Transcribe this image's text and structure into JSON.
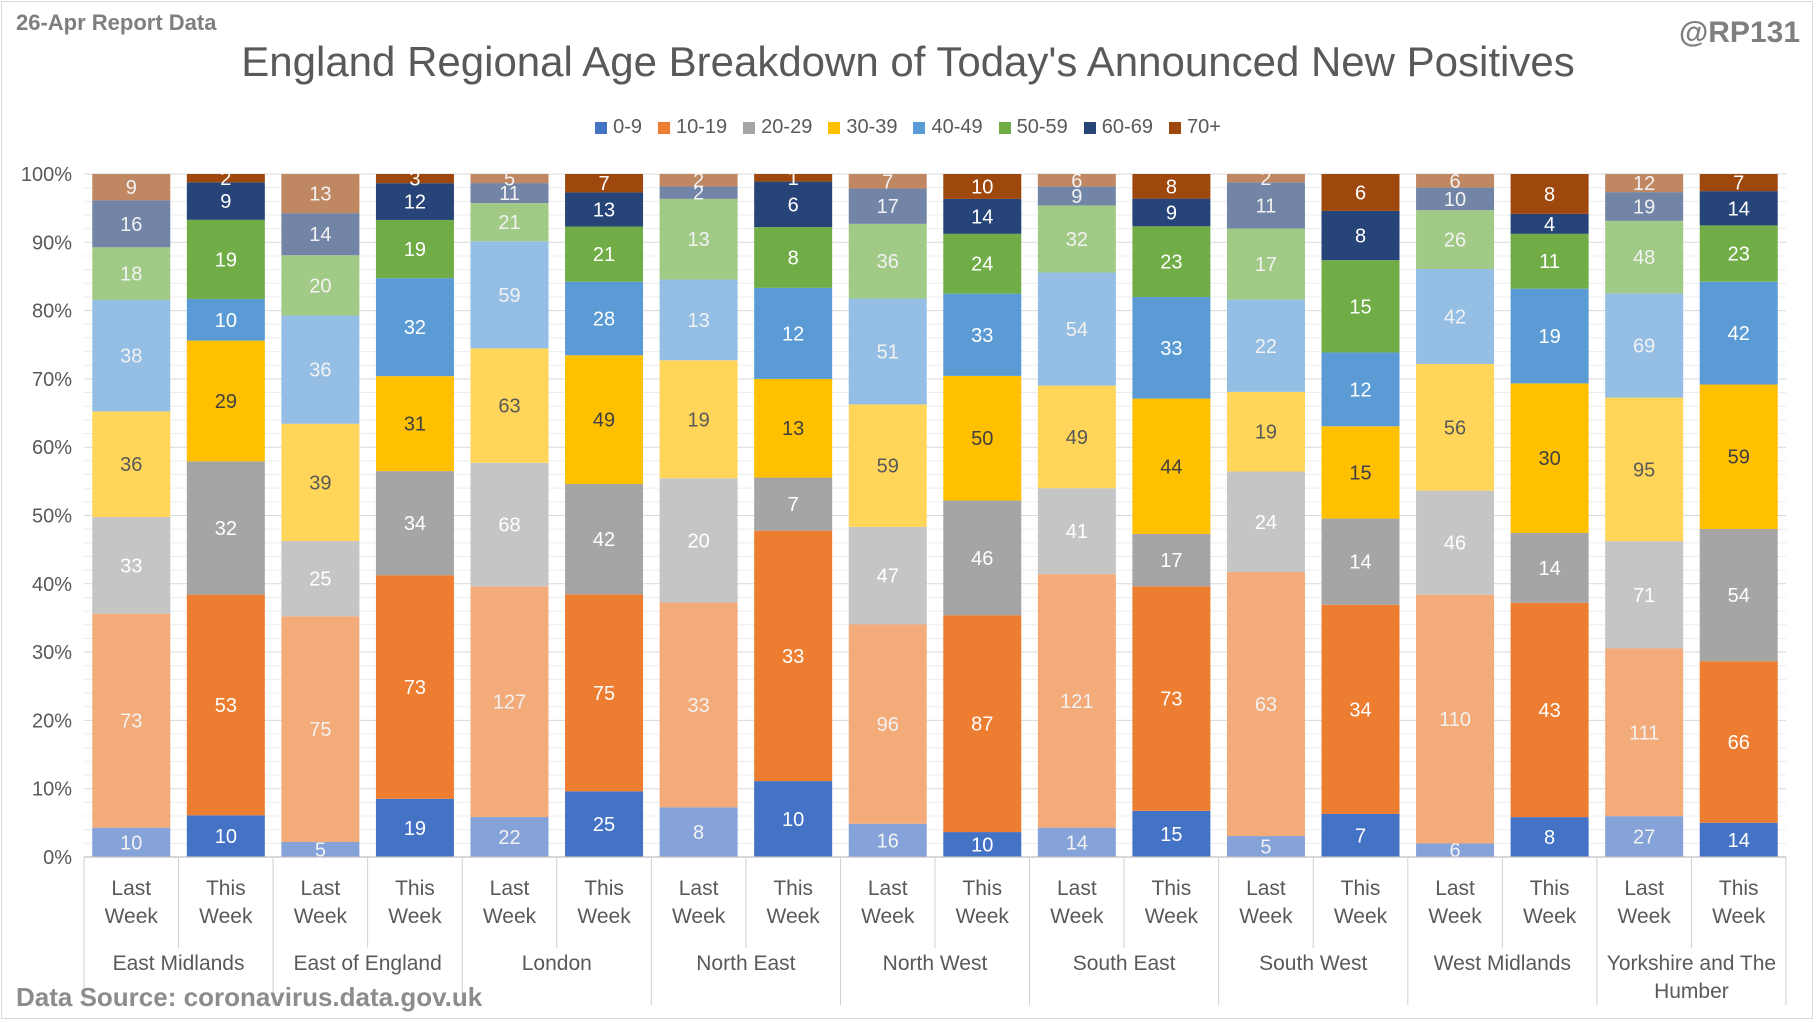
{
  "report_label": "26-Apr Report Data",
  "handle": "@RP131",
  "source": "Data Source: coronavirus.data.gov.uk",
  "chart_data": {
    "type": "bar",
    "stacked": "percent",
    "title": "England Regional Age Breakdown of Today's Announced New Positives",
    "xlabel": "",
    "ylabel": "",
    "ylim": [
      0,
      1
    ],
    "yticks": [
      "0%",
      "10%",
      "20%",
      "30%",
      "40%",
      "50%",
      "60%",
      "70%",
      "80%",
      "90%",
      "100%"
    ],
    "grid": true,
    "legend_position": "top",
    "series_names": [
      "0-9",
      "10-19",
      "20-29",
      "30-39",
      "40-49",
      "50-59",
      "60-69",
      "70+"
    ],
    "series_colors": [
      "#4472c4",
      "#ed7d31",
      "#a5a5a5",
      "#ffc000",
      "#5b9bd5",
      "#70ad47",
      "#264478",
      "#9e480e"
    ],
    "groups": [
      {
        "region": "East Midlands",
        "bars": [
          {
            "label": [
              "Last",
              "Week"
            ],
            "values": [
              10,
              73,
              33,
              36,
              38,
              18,
              16,
              9
            ]
          },
          {
            "label": [
              "This",
              "Week"
            ],
            "values": [
              10,
              53,
              32,
              29,
              10,
              19,
              9,
              2
            ]
          }
        ]
      },
      {
        "region": "East of England",
        "bars": [
          {
            "label": [
              "Last",
              "Week"
            ],
            "values": [
              5,
              75,
              25,
              39,
              36,
              20,
              14,
              13
            ]
          },
          {
            "label": [
              "This",
              "Week"
            ],
            "values": [
              19,
              73,
              34,
              31,
              32,
              19,
              12,
              3
            ]
          }
        ]
      },
      {
        "region": "London",
        "bars": [
          {
            "label": [
              "Last",
              "Week"
            ],
            "values": [
              22,
              127,
              68,
              63,
              59,
              21,
              11,
              5
            ]
          },
          {
            "label": [
              "This",
              "Week"
            ],
            "values": [
              25,
              75,
              42,
              49,
              28,
              21,
              13,
              7
            ]
          }
        ]
      },
      {
        "region": "North East",
        "bars": [
          {
            "label": [
              "Last",
              "Week"
            ],
            "values": [
              8,
              33,
              20,
              19,
              13,
              13,
              2,
              2
            ]
          },
          {
            "label": [
              "This",
              "Week"
            ],
            "values": [
              10,
              33,
              7,
              13,
              12,
              8,
              6,
              1
            ]
          }
        ]
      },
      {
        "region": "North West",
        "bars": [
          {
            "label": [
              "Last",
              "Week"
            ],
            "values": [
              16,
              96,
              47,
              59,
              51,
              36,
              17,
              7
            ]
          },
          {
            "label": [
              "This",
              "Week"
            ],
            "values": [
              10,
              87,
              46,
              50,
              33,
              24,
              14,
              10
            ]
          }
        ]
      },
      {
        "region": "South East",
        "bars": [
          {
            "label": [
              "Last",
              "Week"
            ],
            "values": [
              14,
              121,
              41,
              49,
              54,
              32,
              9,
              6
            ]
          },
          {
            "label": [
              "This",
              "Week"
            ],
            "values": [
              15,
              73,
              17,
              44,
              33,
              23,
              9,
              8
            ]
          }
        ]
      },
      {
        "region": "South West",
        "bars": [
          {
            "label": [
              "Last",
              "Week"
            ],
            "values": [
              5,
              63,
              24,
              19,
              22,
              17,
              11,
              2
            ]
          },
          {
            "label": [
              "This",
              "Week"
            ],
            "values": [
              7,
              34,
              14,
              15,
              12,
              15,
              8,
              6
            ]
          }
        ]
      },
      {
        "region": "West Midlands",
        "bars": [
          {
            "label": [
              "Last",
              "Week"
            ],
            "values": [
              6,
              110,
              46,
              56,
              42,
              26,
              10,
              6
            ]
          },
          {
            "label": [
              "This",
              "Week"
            ],
            "values": [
              8,
              43,
              14,
              30,
              19,
              11,
              4,
              8
            ]
          }
        ]
      },
      {
        "region": [
          "Yorkshire and The",
          "Humber"
        ],
        "bars": [
          {
            "label": [
              "Last",
              "Week"
            ],
            "values": [
              27,
              111,
              71,
              95,
              69,
              48,
              19,
              12
            ]
          },
          {
            "label": [
              "This",
              "Week"
            ],
            "values": [
              14,
              66,
              54,
              59,
              42,
              23,
              14,
              7
            ]
          }
        ]
      }
    ]
  }
}
